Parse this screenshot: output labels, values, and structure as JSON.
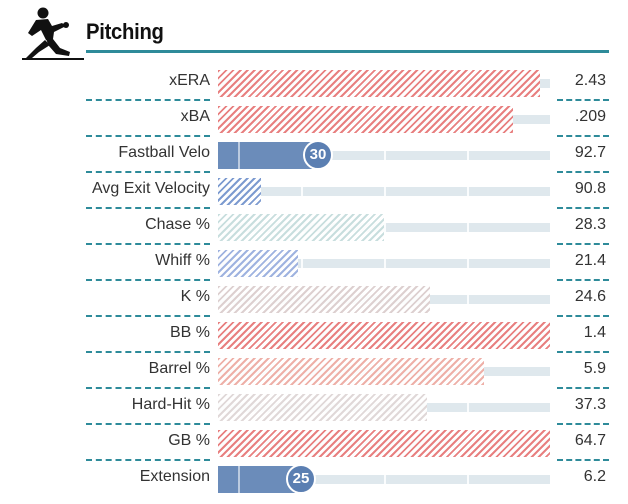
{
  "header": {
    "title": "Pitching",
    "icon": "pitcher-icon"
  },
  "rows": [
    {
      "label": "xERA",
      "value": "2.43",
      "percentile": 97,
      "color": "#e88080",
      "style": "hatch"
    },
    {
      "label": "xBA",
      "value": ".209",
      "percentile": 89,
      "color": "#e88080",
      "style": "hatch"
    },
    {
      "label": "Fastball Velo",
      "value": "92.7",
      "percentile": 30,
      "color": "#6b8cba",
      "style": "solid",
      "badge": "30"
    },
    {
      "label": "Avg Exit Velocity",
      "value": "90.8",
      "percentile": 13,
      "color": "#7d9bd0",
      "style": "hatch"
    },
    {
      "label": "Chase %",
      "value": "28.3",
      "percentile": 50,
      "color": "#c8dede",
      "style": "hatch"
    },
    {
      "label": "Whiff %",
      "value": "21.4",
      "percentile": 24,
      "color": "#9fb3e0",
      "style": "hatch"
    },
    {
      "label": "K %",
      "value": "24.6",
      "percentile": 64,
      "color": "#ddd0d0",
      "style": "hatch"
    },
    {
      "label": "BB %",
      "value": "1.4",
      "percentile": 100,
      "color": "#e88080",
      "style": "hatch"
    },
    {
      "label": "Barrel %",
      "value": "5.9",
      "percentile": 80,
      "color": "#eeb0a8",
      "style": "hatch"
    },
    {
      "label": "Hard-Hit %",
      "value": "37.3",
      "percentile": 63,
      "color": "#e0d8d8",
      "style": "hatch"
    },
    {
      "label": "GB %",
      "value": "64.7",
      "percentile": 100,
      "color": "#e88080",
      "style": "hatch"
    },
    {
      "label": "Extension",
      "value": "6.2",
      "percentile": 25,
      "color": "#6b8cba",
      "style": "solid",
      "badge": "25"
    }
  ]
}
